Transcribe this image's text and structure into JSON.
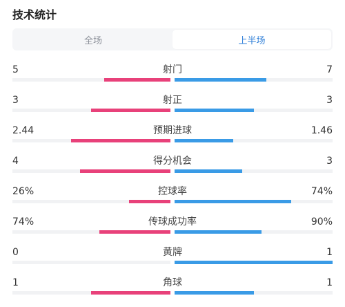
{
  "header": {
    "title": "技术统计"
  },
  "tabs": [
    {
      "label": "全场",
      "active": false
    },
    {
      "label": "上半场",
      "active": true
    }
  ],
  "colors": {
    "home": "#e8417a",
    "away": "#3a9be6",
    "track": "#f1f2f4",
    "active_tab": "#2f7fd8"
  },
  "stats": [
    {
      "label": "射门",
      "left": "5",
      "right": "7",
      "left_share": 0.42,
      "right_share": 0.58
    },
    {
      "label": "射正",
      "left": "3",
      "right": "3",
      "left_share": 0.5,
      "right_share": 0.5
    },
    {
      "label": "预期进球",
      "left": "2.44",
      "right": "1.46",
      "left_share": 0.63,
      "right_share": 0.37
    },
    {
      "label": "得分机会",
      "left": "4",
      "right": "3",
      "left_share": 0.57,
      "right_share": 0.43
    },
    {
      "label": "控球率",
      "left": "26%",
      "right": "74%",
      "left_share": 0.26,
      "right_share": 0.74
    },
    {
      "label": "传球成功率",
      "left": "74%",
      "right": "90%",
      "left_share": 0.45,
      "right_share": 0.55
    },
    {
      "label": "黄牌",
      "left": "0",
      "right": "1",
      "left_share": 0.0,
      "right_share": 1.0
    },
    {
      "label": "角球",
      "left": "1",
      "right": "1",
      "left_share": 0.5,
      "right_share": 0.5
    }
  ]
}
